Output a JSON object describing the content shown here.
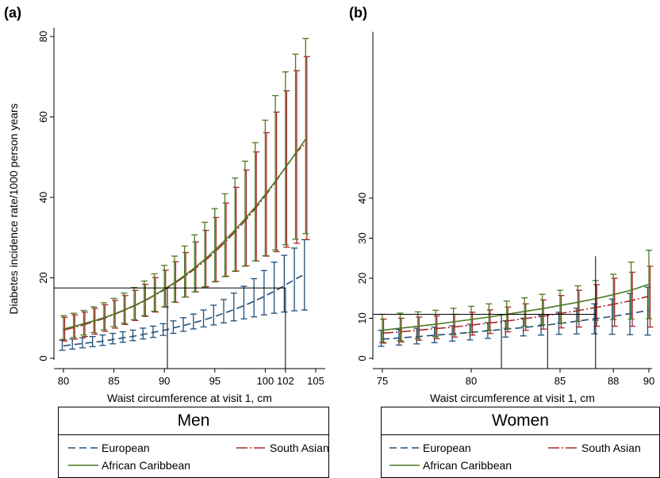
{
  "panel_a": {
    "tag": "(a)",
    "legend_title": "Men",
    "legend_items": [
      "European",
      "South Asian",
      "African Caribbean"
    ]
  },
  "panel_b": {
    "tag": "(b)",
    "legend_title": "Women",
    "legend_items": [
      "European",
      "South Asian",
      "African Caribbean"
    ]
  },
  "colors": {
    "european": "#1f4e79",
    "south_asian": "#a52a2a",
    "african_caribbean": "#4a7a22",
    "axis": "#000000"
  },
  "chart_data": [
    {
      "type": "line",
      "panel": "(a) Men",
      "ylabel": "Diabetes incidence rate/1000 person years",
      "xlabel": "Waist circumference at visit 1, cm",
      "xlim": [
        80,
        105
      ],
      "ylim": [
        0,
        80
      ],
      "xticks": [
        "80",
        "85",
        "90",
        "95",
        "100",
        "102",
        "105"
      ],
      "yticks": [
        "0",
        "20",
        "40",
        "60",
        "80"
      ],
      "reference_lines": {
        "y": 17.5,
        "x_values": [
          90.3,
          102
        ]
      },
      "x": [
        80,
        81,
        82,
        83,
        84,
        85,
        86,
        87,
        88,
        89,
        90,
        91,
        92,
        93,
        94,
        95,
        96,
        97,
        98,
        99,
        100,
        101,
        102,
        103,
        104
      ],
      "series": [
        {
          "name": "European",
          "values": [
            3.1,
            3.4,
            3.7,
            4.0,
            4.3,
            4.7,
            5.1,
            5.5,
            6.0,
            6.5,
            7.0,
            7.6,
            8.2,
            8.9,
            9.6,
            10.4,
            11.3,
            12.2,
            13.2,
            14.3,
            15.5,
            16.8,
            18.2,
            19.7,
            21.0
          ],
          "lower": [
            2.0,
            2.3,
            2.6,
            2.9,
            3.2,
            3.6,
            4.0,
            4.4,
            4.8,
            5.2,
            5.7,
            6.2,
            6.7,
            7.3,
            7.8,
            8.3,
            8.8,
            9.3,
            9.8,
            10.3,
            10.8,
            11.2,
            11.5,
            11.8,
            12.0
          ],
          "upper": [
            4.5,
            4.8,
            5.1,
            5.4,
            5.8,
            6.2,
            6.6,
            7.0,
            7.5,
            8.0,
            8.6,
            9.3,
            10.1,
            11.0,
            12.0,
            13.2,
            14.6,
            16.2,
            17.9,
            19.8,
            21.8,
            23.9,
            25.6,
            27.4,
            29.5
          ]
        },
        {
          "name": "South Asian",
          "values": [
            7.0,
            7.6,
            8.3,
            9.1,
            9.9,
            10.9,
            11.9,
            13.0,
            14.2,
            15.6,
            17.0,
            18.6,
            20.3,
            22.2,
            24.2,
            26.4,
            28.8,
            31.4,
            34.2,
            37.2,
            40.4,
            43.8,
            47.4,
            51.0,
            53.5
          ],
          "lower": [
            4.3,
            4.8,
            5.4,
            6.0,
            6.7,
            7.5,
            8.4,
            9.4,
            10.4,
            11.5,
            12.7,
            13.9,
            15.2,
            16.5,
            17.8,
            19.1,
            20.4,
            21.7,
            23.0,
            24.2,
            25.4,
            26.5,
            27.6,
            28.6,
            29.5
          ],
          "upper": [
            10.2,
            10.8,
            11.5,
            12.4,
            13.3,
            14.4,
            15.6,
            16.9,
            18.4,
            20.1,
            21.9,
            24.0,
            26.3,
            28.9,
            31.8,
            35.0,
            38.6,
            42.5,
            46.8,
            51.3,
            56.1,
            61.2,
            66.5,
            71.5,
            75.0
          ]
        },
        {
          "name": "African Caribbean",
          "values": [
            7.3,
            7.9,
            8.6,
            9.3,
            10.1,
            11.0,
            12.0,
            13.1,
            14.3,
            15.7,
            17.2,
            18.8,
            20.6,
            22.5,
            24.6,
            26.9,
            29.3,
            31.9,
            34.7,
            37.6,
            40.7,
            44.0,
            47.4,
            50.9,
            54.5
          ],
          "lower": [
            4.7,
            5.2,
            5.8,
            6.4,
            7.1,
            7.9,
            8.7,
            9.6,
            10.6,
            11.7,
            12.8,
            14.0,
            15.2,
            16.5,
            17.7,
            19.0,
            20.3,
            21.6,
            22.9,
            24.2,
            25.5,
            26.9,
            28.2,
            29.6,
            31.0
          ],
          "upper": [
            10.6,
            11.2,
            11.9,
            12.8,
            13.8,
            14.9,
            16.2,
            17.6,
            19.2,
            21.0,
            23.1,
            25.4,
            27.9,
            30.7,
            33.8,
            37.2,
            40.9,
            44.8,
            49.0,
            53.6,
            59.2,
            65.3,
            71.2,
            75.6,
            79.5
          ]
        }
      ]
    },
    {
      "type": "line",
      "panel": "(b) Women",
      "xlabel": "Waist circumference at visit 1, cm",
      "xlim": [
        75,
        90
      ],
      "ylim": [
        0,
        40
      ],
      "xticks": [
        "75",
        "80",
        "85",
        "88",
        "90"
      ],
      "yticks": [
        "0",
        "10",
        "20",
        "30",
        "40"
      ],
      "reference_lines": {
        "y": 11,
        "x_values": [
          81.7,
          84.3,
          87
        ]
      },
      "x": [
        75,
        76,
        77,
        78,
        79,
        80,
        81,
        82,
        83,
        84,
        85,
        86,
        87,
        88,
        89,
        90
      ],
      "series": [
        {
          "name": "European",
          "values": [
            4.8,
            5.1,
            5.4,
            5.8,
            6.1,
            6.5,
            6.9,
            7.3,
            7.7,
            8.2,
            8.7,
            9.3,
            9.9,
            10.5,
            11.2,
            12.0
          ],
          "lower": [
            3.0,
            3.3,
            3.6,
            3.9,
            4.3,
            4.6,
            5.0,
            5.3,
            5.6,
            5.8,
            6.0,
            6.1,
            6.1,
            6.0,
            5.9,
            5.8
          ],
          "upper": [
            7.0,
            7.2,
            7.5,
            7.8,
            8.1,
            8.5,
            8.9,
            9.4,
            10.0,
            10.7,
            11.5,
            12.5,
            13.6,
            14.8,
            16.2,
            17.8
          ]
        },
        {
          "name": "South Asian",
          "values": [
            6.3,
            6.6,
            7.0,
            7.4,
            7.8,
            8.3,
            8.8,
            9.3,
            9.9,
            10.5,
            11.2,
            11.9,
            12.7,
            13.5,
            14.4,
            15.5
          ],
          "lower": [
            3.8,
            4.1,
            4.5,
            4.9,
            5.3,
            5.8,
            6.2,
            6.6,
            7.0,
            7.3,
            7.6,
            7.8,
            8.0,
            8.0,
            8.0,
            7.8
          ],
          "upper": [
            9.8,
            10.0,
            10.3,
            10.6,
            11.0,
            11.5,
            12.1,
            12.8,
            13.6,
            14.6,
            15.7,
            17.0,
            18.4,
            20.0,
            21.5,
            23.0
          ]
        },
        {
          "name": "African Caribbean",
          "values": [
            7.0,
            7.5,
            8.0,
            8.5,
            9.1,
            9.7,
            10.3,
            11.0,
            11.7,
            12.4,
            13.2,
            14.0,
            14.9,
            15.9,
            17.0,
            18.5
          ],
          "lower": [
            4.0,
            4.4,
            4.9,
            5.4,
            5.9,
            6.4,
            7.0,
            7.5,
            8.0,
            8.4,
            8.8,
            9.2,
            9.5,
            9.7,
            9.8,
            9.9
          ],
          "upper": [
            11.0,
            11.3,
            11.6,
            12.0,
            12.5,
            13.0,
            13.6,
            14.3,
            15.1,
            16.0,
            17.0,
            18.1,
            19.4,
            21.0,
            24.0,
            27.0
          ]
        }
      ]
    }
  ]
}
